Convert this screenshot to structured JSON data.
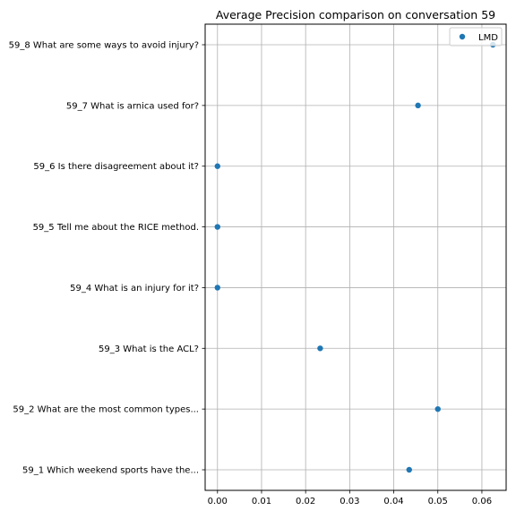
{
  "chart_data": {
    "type": "scatter",
    "title": "Average Precision comparison on conversation 59",
    "xlabel": "",
    "ylabel": "",
    "xlim": [
      -0.0028,
      0.0655
    ],
    "xticks": [
      0.0,
      0.01,
      0.02,
      0.03,
      0.04,
      0.05,
      0.06
    ],
    "xtick_labels": [
      "0.00",
      "0.01",
      "0.02",
      "0.03",
      "0.04",
      "0.05",
      "0.06"
    ],
    "grid": true,
    "legend_position": "top-right",
    "categories": [
      "59_1 Which weekend sports have the...",
      "59_2 What are the most common types...",
      "59_3 What is the ACL?",
      "59_4 What is an injury for it?",
      "59_5 Tell me about the RICE method.",
      "59_6 Is there disagreement about it?",
      "59_7 What is arnica used for?",
      "59_8 What are some ways to avoid injury?"
    ],
    "series": [
      {
        "name": "LMD",
        "color": "#1f77b4",
        "values": [
          0.0435,
          0.05,
          0.0233,
          0.0,
          0.0,
          0.0,
          0.0455,
          0.0625
        ]
      }
    ]
  }
}
